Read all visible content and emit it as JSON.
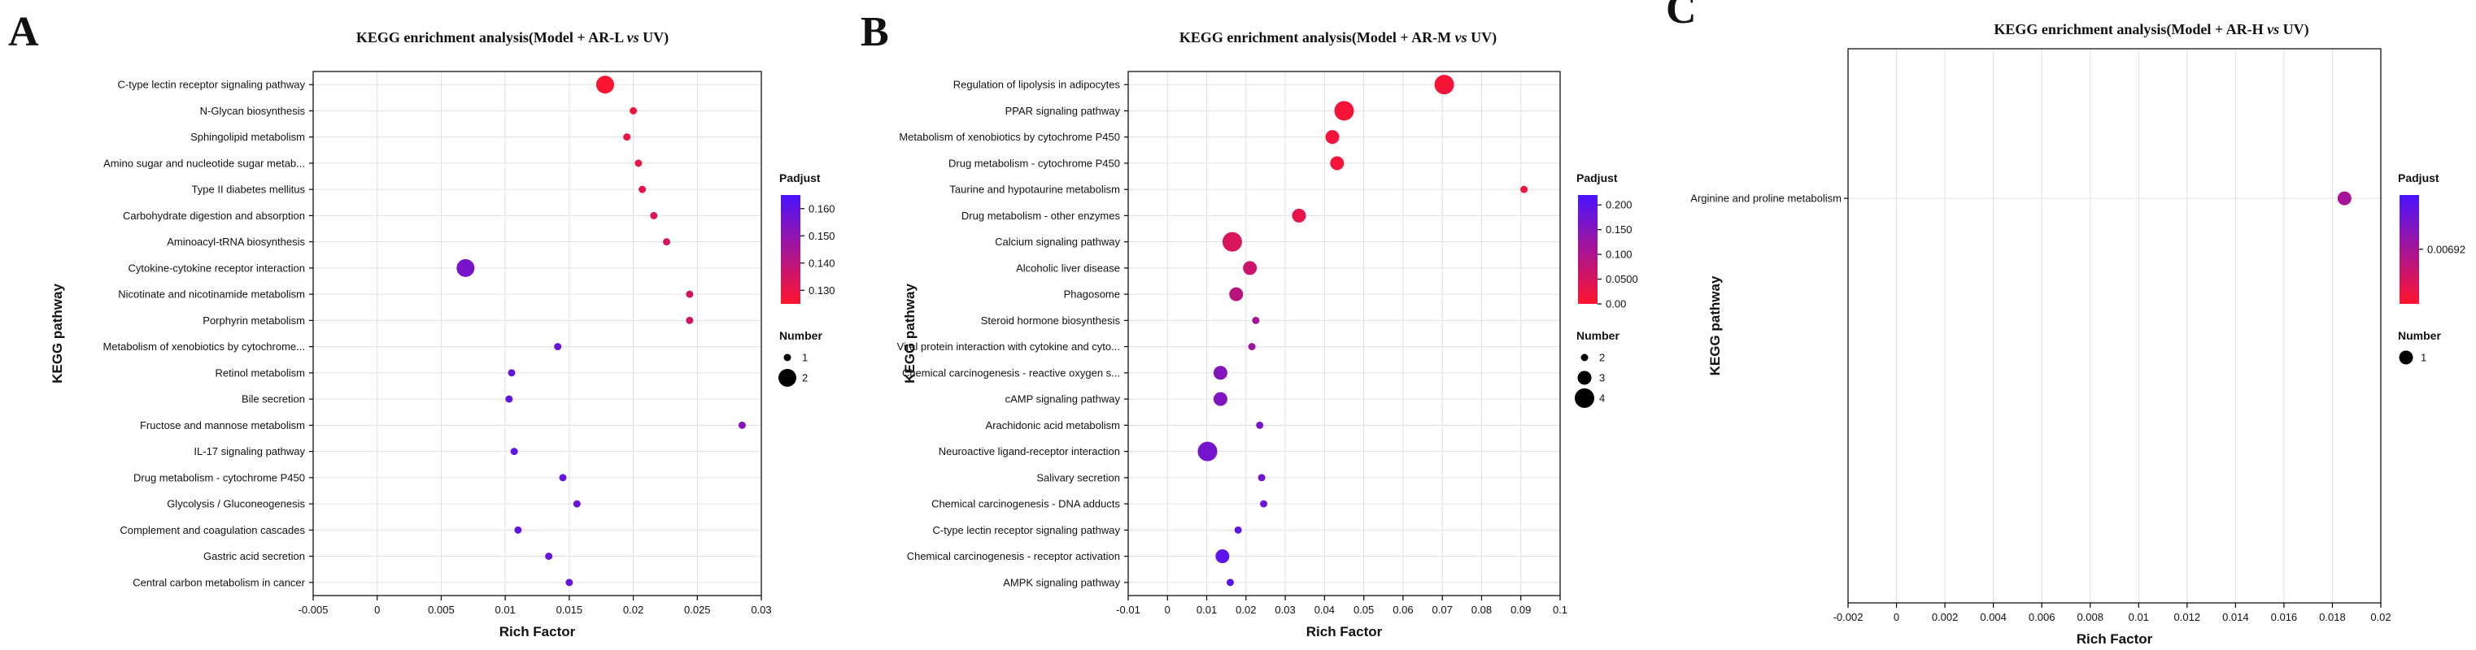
{
  "chart_data": [
    {
      "type": "scatter",
      "panel": "A",
      "title": "KEGG enrichment analysis(Model + AR-L vs UV)",
      "title_parts": [
        "KEGG enrichment analysis(Model + AR-L ",
        "vs",
        " UV)"
      ],
      "xlabel": "Rich Factor",
      "ylabel": "KEGG pathway",
      "xlim": [
        -0.005,
        0.03
      ],
      "xticks": [
        "-0.005",
        "0",
        "0.005",
        "0.01",
        "0.015",
        "0.02",
        "0.025",
        "0.03"
      ],
      "xtick_values": [
        -0.005,
        0,
        0.005,
        0.01,
        0.015,
        0.02,
        0.025,
        0.03
      ],
      "color_title": "Padjust",
      "color_range": [
        0.125,
        0.165
      ],
      "color_ticks": [
        "0.160",
        "0.150",
        "0.140",
        "0.130"
      ],
      "color_tick_values": [
        0.16,
        0.15,
        0.14,
        0.13
      ],
      "size_title": "Number",
      "size_values": [
        1,
        2
      ],
      "size_labels": [
        "1",
        "2"
      ],
      "points": [
        {
          "pathway": "C-type lectin receptor signaling pathway",
          "x": 0.0178,
          "number": 2,
          "padjust": 0.126
        },
        {
          "pathway": "N-Glycan biosynthesis",
          "x": 0.02,
          "number": 1,
          "padjust": 0.129
        },
        {
          "pathway": "Sphingolipid metabolism",
          "x": 0.0195,
          "number": 1,
          "padjust": 0.129
        },
        {
          "pathway": "Amino sugar and nucleotide sugar metab...",
          "x": 0.0204,
          "number": 1,
          "padjust": 0.13
        },
        {
          "pathway": "Type II diabetes mellitus",
          "x": 0.0207,
          "number": 1,
          "padjust": 0.131
        },
        {
          "pathway": "Carbohydrate digestion and absorption",
          "x": 0.0216,
          "number": 1,
          "padjust": 0.132
        },
        {
          "pathway": "Aminoacyl-tRNA biosynthesis",
          "x": 0.0226,
          "number": 1,
          "padjust": 0.134
        },
        {
          "pathway": "Cytokine-cytokine receptor interaction",
          "x": 0.0069,
          "number": 2,
          "padjust": 0.155
        },
        {
          "pathway": "Nicotinate and nicotinamide metabolism",
          "x": 0.0244,
          "number": 1,
          "padjust": 0.135
        },
        {
          "pathway": "Porphyrin metabolism",
          "x": 0.0244,
          "number": 1,
          "padjust": 0.136
        },
        {
          "pathway": "Metabolism of xenobiotics by cytochrome...",
          "x": 0.0141,
          "number": 1,
          "padjust": 0.158
        },
        {
          "pathway": "Retinol metabolism",
          "x": 0.0105,
          "number": 1,
          "padjust": 0.16
        },
        {
          "pathway": "Bile secretion",
          "x": 0.0103,
          "number": 1,
          "padjust": 0.16
        },
        {
          "pathway": "Fructose and mannose metabolism",
          "x": 0.0285,
          "number": 1,
          "padjust": 0.152
        },
        {
          "pathway": "IL-17 signaling pathway",
          "x": 0.0107,
          "number": 1,
          "padjust": 0.16
        },
        {
          "pathway": "Drug metabolism - cytochrome P450",
          "x": 0.0145,
          "number": 1,
          "padjust": 0.159
        },
        {
          "pathway": "Glycolysis / Gluconeogenesis",
          "x": 0.0156,
          "number": 1,
          "padjust": 0.158
        },
        {
          "pathway": "Complement and coagulation cascades",
          "x": 0.011,
          "number": 1,
          "padjust": 0.16
        },
        {
          "pathway": "Gastric acid secretion",
          "x": 0.0134,
          "number": 1,
          "padjust": 0.159
        },
        {
          "pathway": "Central carbon metabolism in cancer",
          "x": 0.015,
          "number": 1,
          "padjust": 0.158
        }
      ]
    },
    {
      "type": "scatter",
      "panel": "B",
      "title": "KEGG enrichment analysis(Model + AR-M vs UV)",
      "title_parts": [
        "KEGG enrichment analysis(Model + AR-M ",
        "vs",
        " UV)"
      ],
      "xlabel": "Rich Factor",
      "ylabel": "KEGG pathway",
      "xlim": [
        -0.01,
        0.1
      ],
      "xticks": [
        "-0.01",
        "0",
        "0.01",
        "0.02",
        "0.03",
        "0.04",
        "0.05",
        "0.06",
        "0.07",
        "0.08",
        "0.09",
        "0.1"
      ],
      "xtick_values": [
        -0.01,
        0,
        0.01,
        0.02,
        0.03,
        0.04,
        0.05,
        0.06,
        0.07,
        0.08,
        0.09,
        0.1
      ],
      "color_title": "Padjust",
      "color_range": [
        0.0,
        0.22
      ],
      "color_ticks": [
        "0.200",
        "0.150",
        "0.100",
        "0.0500",
        "0.00"
      ],
      "color_tick_values": [
        0.2,
        0.15,
        0.1,
        0.05,
        0.0
      ],
      "size_title": "Number",
      "size_values": [
        2,
        3,
        4
      ],
      "size_labels": [
        "2",
        "3",
        "4"
      ],
      "points": [
        {
          "pathway": "Regulation of lipolysis in adipocytes",
          "x": 0.0705,
          "number": 4,
          "padjust": 0.01
        },
        {
          "pathway": "PPAR signaling pathway",
          "x": 0.045,
          "number": 4,
          "padjust": 0.012
        },
        {
          "pathway": "Metabolism of xenobiotics by cytochrome P450",
          "x": 0.042,
          "number": 3,
          "padjust": 0.014
        },
        {
          "pathway": "Drug metabolism - cytochrome P450",
          "x": 0.0432,
          "number": 3,
          "padjust": 0.015
        },
        {
          "pathway": "Taurine and hypotaurine metabolism",
          "x": 0.0908,
          "number": 2,
          "padjust": 0.018
        },
        {
          "pathway": "Drug metabolism - other enzymes",
          "x": 0.0335,
          "number": 3,
          "padjust": 0.03
        },
        {
          "pathway": "Calcium signaling pathway",
          "x": 0.0165,
          "number": 4,
          "padjust": 0.045
        },
        {
          "pathway": "Alcoholic liver disease",
          "x": 0.021,
          "number": 3,
          "padjust": 0.065
        },
        {
          "pathway": "Phagosome",
          "x": 0.0175,
          "number": 3,
          "padjust": 0.085
        },
        {
          "pathway": "Steroid hormone biosynthesis",
          "x": 0.0225,
          "number": 2,
          "padjust": 0.11
        },
        {
          "pathway": "Viral protein interaction with cytokine and cyto...",
          "x": 0.0215,
          "number": 2,
          "padjust": 0.12
        },
        {
          "pathway": "Chemical carcinogenesis - reactive oxygen s...",
          "x": 0.0135,
          "number": 3,
          "padjust": 0.15
        },
        {
          "pathway": "cAMP signaling pathway",
          "x": 0.0135,
          "number": 3,
          "padjust": 0.155
        },
        {
          "pathway": "Arachidonic acid metabolism",
          "x": 0.0235,
          "number": 2,
          "padjust": 0.165
        },
        {
          "pathway": "Neuroactive ligand-receptor interaction",
          "x": 0.0102,
          "number": 4,
          "padjust": 0.17
        },
        {
          "pathway": "Salivary secretion",
          "x": 0.024,
          "number": 2,
          "padjust": 0.175
        },
        {
          "pathway": "Chemical carcinogenesis - DNA adducts",
          "x": 0.0245,
          "number": 2,
          "padjust": 0.178
        },
        {
          "pathway": "C-type lectin receptor signaling pathway",
          "x": 0.018,
          "number": 2,
          "padjust": 0.19
        },
        {
          "pathway": "Chemical carcinogenesis - receptor activation",
          "x": 0.014,
          "number": 3,
          "padjust": 0.2
        },
        {
          "pathway": "AMPK signaling pathway",
          "x": 0.016,
          "number": 2,
          "padjust": 0.205
        }
      ]
    },
    {
      "type": "scatter",
      "panel": "C",
      "title": "KEGG enrichment analysis(Model + AR-H vs UV)",
      "title_parts": [
        "KEGG enrichment analysis(Model + AR-H ",
        "vs",
        " UV)"
      ],
      "xlabel": "Rich Factor",
      "ylabel": "KEGG pathway",
      "xlim": [
        -0.002,
        0.02
      ],
      "xticks": [
        "-0.002",
        "0",
        "0.002",
        "0.004",
        "0.006",
        "0.008",
        "0.01",
        "0.012",
        "0.014",
        "0.016",
        "0.018",
        "0.02"
      ],
      "xtick_values": [
        -0.002,
        0,
        0.002,
        0.004,
        0.006,
        0.008,
        0.01,
        0.012,
        0.014,
        0.016,
        0.018,
        0.02
      ],
      "color_title": "Padjust",
      "color_range": [
        0.0,
        0.0138
      ],
      "color_ticks": [
        "0.00692"
      ],
      "color_tick_values": [
        0.00692
      ],
      "size_title": "Number",
      "size_values": [
        1
      ],
      "size_labels": [
        "1"
      ],
      "points": [
        {
          "pathway": "Arginine and proline metabolism",
          "x": 0.0185,
          "number": 1,
          "padjust": 0.00692
        }
      ]
    }
  ]
}
